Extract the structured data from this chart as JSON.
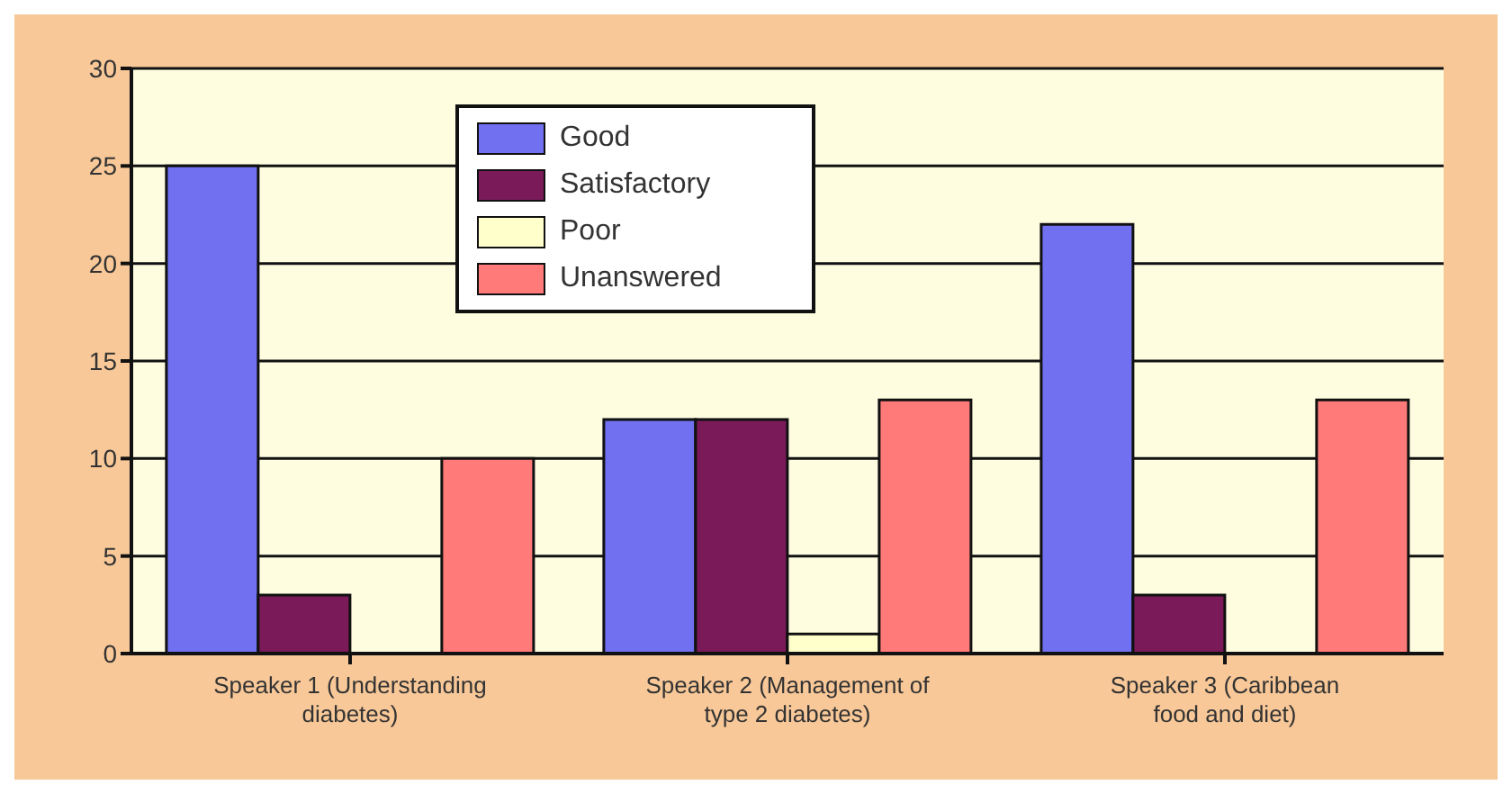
{
  "chart_data": {
    "type": "bar",
    "categories": [
      "Speaker 1 (Understanding diabetes)",
      "Speaker 2 (Management of type 2 diabetes)",
      "Speaker 3 (Caribbean food and diet)"
    ],
    "series": [
      {
        "name": "Good",
        "color": "#7070f0",
        "values": [
          25,
          12,
          22
        ]
      },
      {
        "name": "Satisfactory",
        "color": "#7a1a58",
        "values": [
          3,
          12,
          3
        ]
      },
      {
        "name": "Poor",
        "color": "#ffffcc",
        "values": [
          0,
          1,
          0
        ]
      },
      {
        "name": "Unanswered",
        "color": "#ff7a78",
        "values": [
          10,
          13,
          13
        ]
      }
    ],
    "ylim": [
      0,
      30
    ],
    "yticks": [
      0,
      5,
      10,
      15,
      20,
      25,
      30
    ],
    "grid": "y",
    "legend": "top"
  }
}
